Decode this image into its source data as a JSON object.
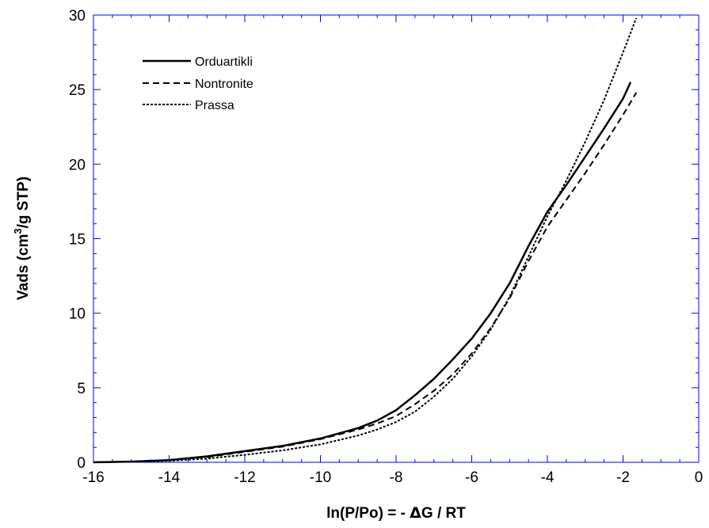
{
  "chart_data": {
    "type": "line",
    "title": "",
    "xlabel_main": "ln(P/Po) = - ",
    "xlabel_delta": "Δ",
    "xlabel_rest": "G / RT",
    "ylabel_main": "Vads (cm",
    "ylabel_sup": "3",
    "ylabel_rest": "/g STP)",
    "xlim": [
      -16,
      0
    ],
    "ylim": [
      0,
      30
    ],
    "xticks": [
      -16,
      -14,
      -12,
      -10,
      -8,
      -6,
      -4,
      -2,
      0
    ],
    "yticks": [
      0,
      5,
      10,
      15,
      20,
      25,
      30
    ],
    "grid": false,
    "legend_position": "top-left",
    "series": [
      {
        "name": "Orduartikli",
        "style": "solid",
        "x": [
          -16,
          -15,
          -14,
          -13,
          -12,
          -11,
          -10,
          -9,
          -8.5,
          -8,
          -7.5,
          -7,
          -6.5,
          -6,
          -5.5,
          -5,
          -4.5,
          -4,
          -3.5,
          -3,
          -2.5,
          -2,
          -1.8
        ],
        "y": [
          0,
          0.05,
          0.15,
          0.4,
          0.75,
          1.1,
          1.6,
          2.3,
          2.8,
          3.5,
          4.5,
          5.6,
          6.9,
          8.3,
          10.0,
          12.0,
          14.5,
          16.8,
          18.6,
          20.5,
          22.4,
          24.4,
          25.5
        ]
      },
      {
        "name": "Nontronite",
        "style": "dashed",
        "x": [
          -16,
          -15,
          -14,
          -13,
          -12,
          -11,
          -10,
          -9,
          -8.5,
          -8,
          -7.5,
          -7,
          -6.5,
          -6,
          -5.5,
          -5,
          -4.5,
          -4,
          -3.5,
          -3,
          -2.5,
          -2,
          -1.65
        ],
        "y": [
          0,
          0.05,
          0.15,
          0.35,
          0.7,
          1.05,
          1.55,
          2.2,
          2.6,
          3.1,
          3.9,
          4.8,
          5.9,
          7.3,
          9.0,
          11.0,
          13.5,
          15.8,
          17.6,
          19.4,
          21.3,
          23.3,
          24.8
        ]
      },
      {
        "name": "Prassa",
        "style": "dotted",
        "x": [
          -16,
          -15,
          -14,
          -13,
          -12,
          -11,
          -10,
          -9,
          -8.5,
          -8,
          -7.5,
          -7,
          -6.5,
          -6,
          -5.5,
          -5,
          -4.5,
          -4,
          -3.5,
          -3,
          -2.5,
          -2,
          -1.65
        ],
        "y": [
          0,
          0.04,
          0.1,
          0.25,
          0.5,
          0.8,
          1.2,
          1.8,
          2.2,
          2.7,
          3.4,
          4.4,
          5.6,
          7.1,
          8.9,
          11.1,
          13.8,
          16.5,
          18.9,
          21.5,
          24.3,
          27.5,
          29.8
        ]
      }
    ]
  }
}
